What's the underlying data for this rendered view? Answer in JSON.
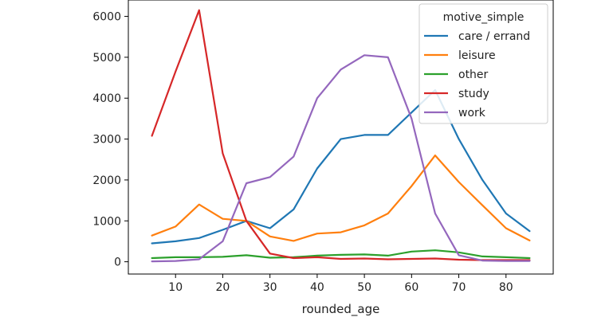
{
  "chart_data": {
    "type": "line",
    "title": "",
    "xlabel": "rounded_age",
    "ylabel": "",
    "x": [
      5,
      10,
      15,
      20,
      25,
      30,
      35,
      40,
      45,
      50,
      55,
      60,
      65,
      70,
      75,
      80,
      85
    ],
    "xlim": [
      0,
      90
    ],
    "ylim": [
      -300,
      6400
    ],
    "xticks": [
      10,
      20,
      30,
      40,
      50,
      60,
      70,
      80
    ],
    "yticks": [
      0,
      1000,
      2000,
      3000,
      4000,
      5000,
      6000
    ],
    "grid": false,
    "legend": {
      "title": "motive_simple",
      "placement": "top-right"
    },
    "series": [
      {
        "name": "care / errand",
        "color": "#1f77b4",
        "values": [
          450,
          500,
          580,
          780,
          1000,
          820,
          1280,
          2280,
          3000,
          3100,
          3100,
          3650,
          4200,
          3000,
          2000,
          1180,
          750
        ]
      },
      {
        "name": "leisure",
        "color": "#ff7f0e",
        "values": [
          640,
          860,
          1400,
          1050,
          1000,
          620,
          510,
          690,
          720,
          890,
          1180,
          1850,
          2600,
          1950,
          1380,
          820,
          520
        ]
      },
      {
        "name": "other",
        "color": "#2ca02c",
        "values": [
          90,
          110,
          110,
          120,
          160,
          100,
          110,
          150,
          170,
          180,
          150,
          250,
          280,
          230,
          130,
          110,
          90
        ]
      },
      {
        "name": "study",
        "color": "#d62728",
        "values": [
          3080,
          4650,
          6150,
          2650,
          1000,
          200,
          90,
          110,
          70,
          80,
          60,
          70,
          80,
          50,
          40,
          40,
          40
        ]
      },
      {
        "name": "work",
        "color": "#9467bd",
        "values": [
          10,
          20,
          60,
          500,
          1920,
          2070,
          2570,
          4000,
          4700,
          5050,
          5000,
          3500,
          1180,
          160,
          30,
          20,
          20
        ]
      }
    ]
  }
}
